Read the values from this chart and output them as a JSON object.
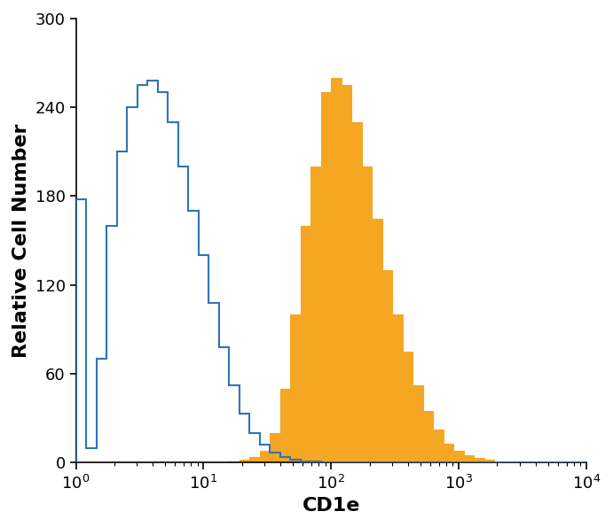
{
  "xlabel": "CD1e",
  "ylabel": "Relative Cell Number",
  "ylim": [
    0,
    300
  ],
  "yticks": [
    0,
    60,
    120,
    180,
    240,
    300
  ],
  "xlabel_fontsize": 16,
  "ylabel_fontsize": 16,
  "tick_fontsize": 13,
  "blue_color": "#2E75B6",
  "orange_color": "#F5A623",
  "background_color": "#ffffff",
  "blue_counts": [
    178,
    10,
    70,
    160,
    210,
    240,
    255,
    258,
    250,
    230,
    200,
    170,
    140,
    108,
    78,
    52,
    33,
    20,
    12,
    7,
    4,
    2,
    1,
    1,
    0,
    0,
    0,
    0,
    0,
    0,
    0,
    0,
    0,
    0,
    0,
    0,
    0,
    0,
    0,
    0,
    0,
    0,
    0,
    0,
    0,
    0,
    0,
    0,
    0,
    0
  ],
  "orange_counts": [
    0,
    0,
    0,
    0,
    0,
    0,
    0,
    0,
    0,
    0,
    0,
    0,
    0,
    0,
    0,
    1,
    2,
    4,
    8,
    20,
    50,
    100,
    160,
    200,
    250,
    260,
    255,
    230,
    200,
    165,
    130,
    100,
    75,
    52,
    35,
    22,
    13,
    8,
    5,
    3,
    2,
    1,
    1,
    0,
    0,
    0,
    0,
    0,
    0,
    0
  ],
  "n_bins": 50,
  "log_min": 0,
  "log_max": 4
}
